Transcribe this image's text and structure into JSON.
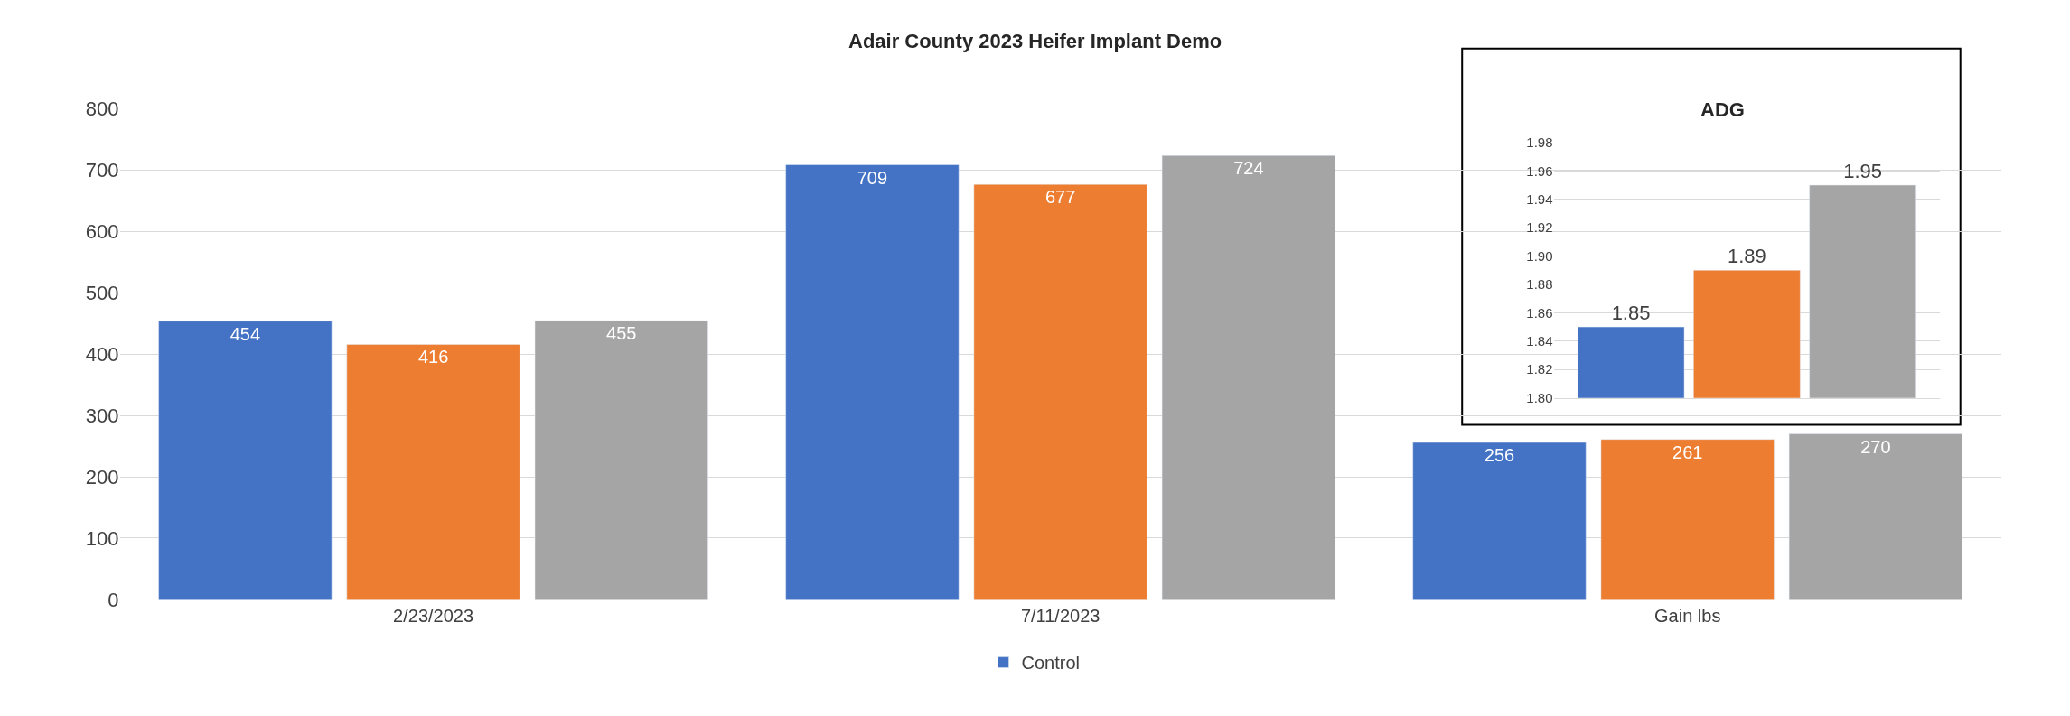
{
  "chart_data": [
    {
      "type": "bar",
      "title": "Adair County 2023 Heifer Implant Demo",
      "categories": [
        "2/23/2023",
        "7/11/2023",
        "Gain lbs"
      ],
      "series": [
        {
          "name": "Control",
          "color": "#4472c4",
          "values": [
            454,
            709,
            256
          ]
        },
        {
          "color": "#ed7d31",
          "values": [
            416,
            677,
            261
          ]
        },
        {
          "color": "#a5a5a5",
          "values": [
            455,
            724,
            270
          ]
        }
      ],
      "ylim": [
        0,
        800
      ],
      "yticks": [
        0,
        100,
        200,
        300,
        400,
        500,
        600,
        700,
        800
      ],
      "grid": "y",
      "legend": "bottom",
      "data_labels": true
    },
    {
      "type": "bar",
      "title": "ADG",
      "categories": [
        null
      ],
      "series": [
        {
          "color": "#4472c4",
          "values": [
            1.85
          ]
        },
        {
          "color": "#ed7d31",
          "values": [
            1.89
          ]
        },
        {
          "color": "#a5a5a5",
          "values": [
            1.95
          ]
        }
      ],
      "ylim": [
        1.8,
        1.98
      ],
      "yticks": [
        {
          "value": 1.8,
          "label": "1.80"
        },
        {
          "value": 1.82,
          "label": "1.82"
        },
        {
          "value": 1.84,
          "label": "1.84"
        },
        {
          "value": 1.86,
          "label": "1.86"
        },
        {
          "value": 1.88,
          "label": "1.88"
        },
        {
          "value": 1.9,
          "label": "1.90"
        },
        {
          "value": 1.92,
          "label": "1.92"
        },
        {
          "value": 1.94,
          "label": "1.94"
        },
        {
          "value": 1.96,
          "label": "1.96"
        },
        {
          "value": 1.98,
          "label": "1.98"
        }
      ],
      "grid": "y",
      "data_labels": true
    }
  ]
}
